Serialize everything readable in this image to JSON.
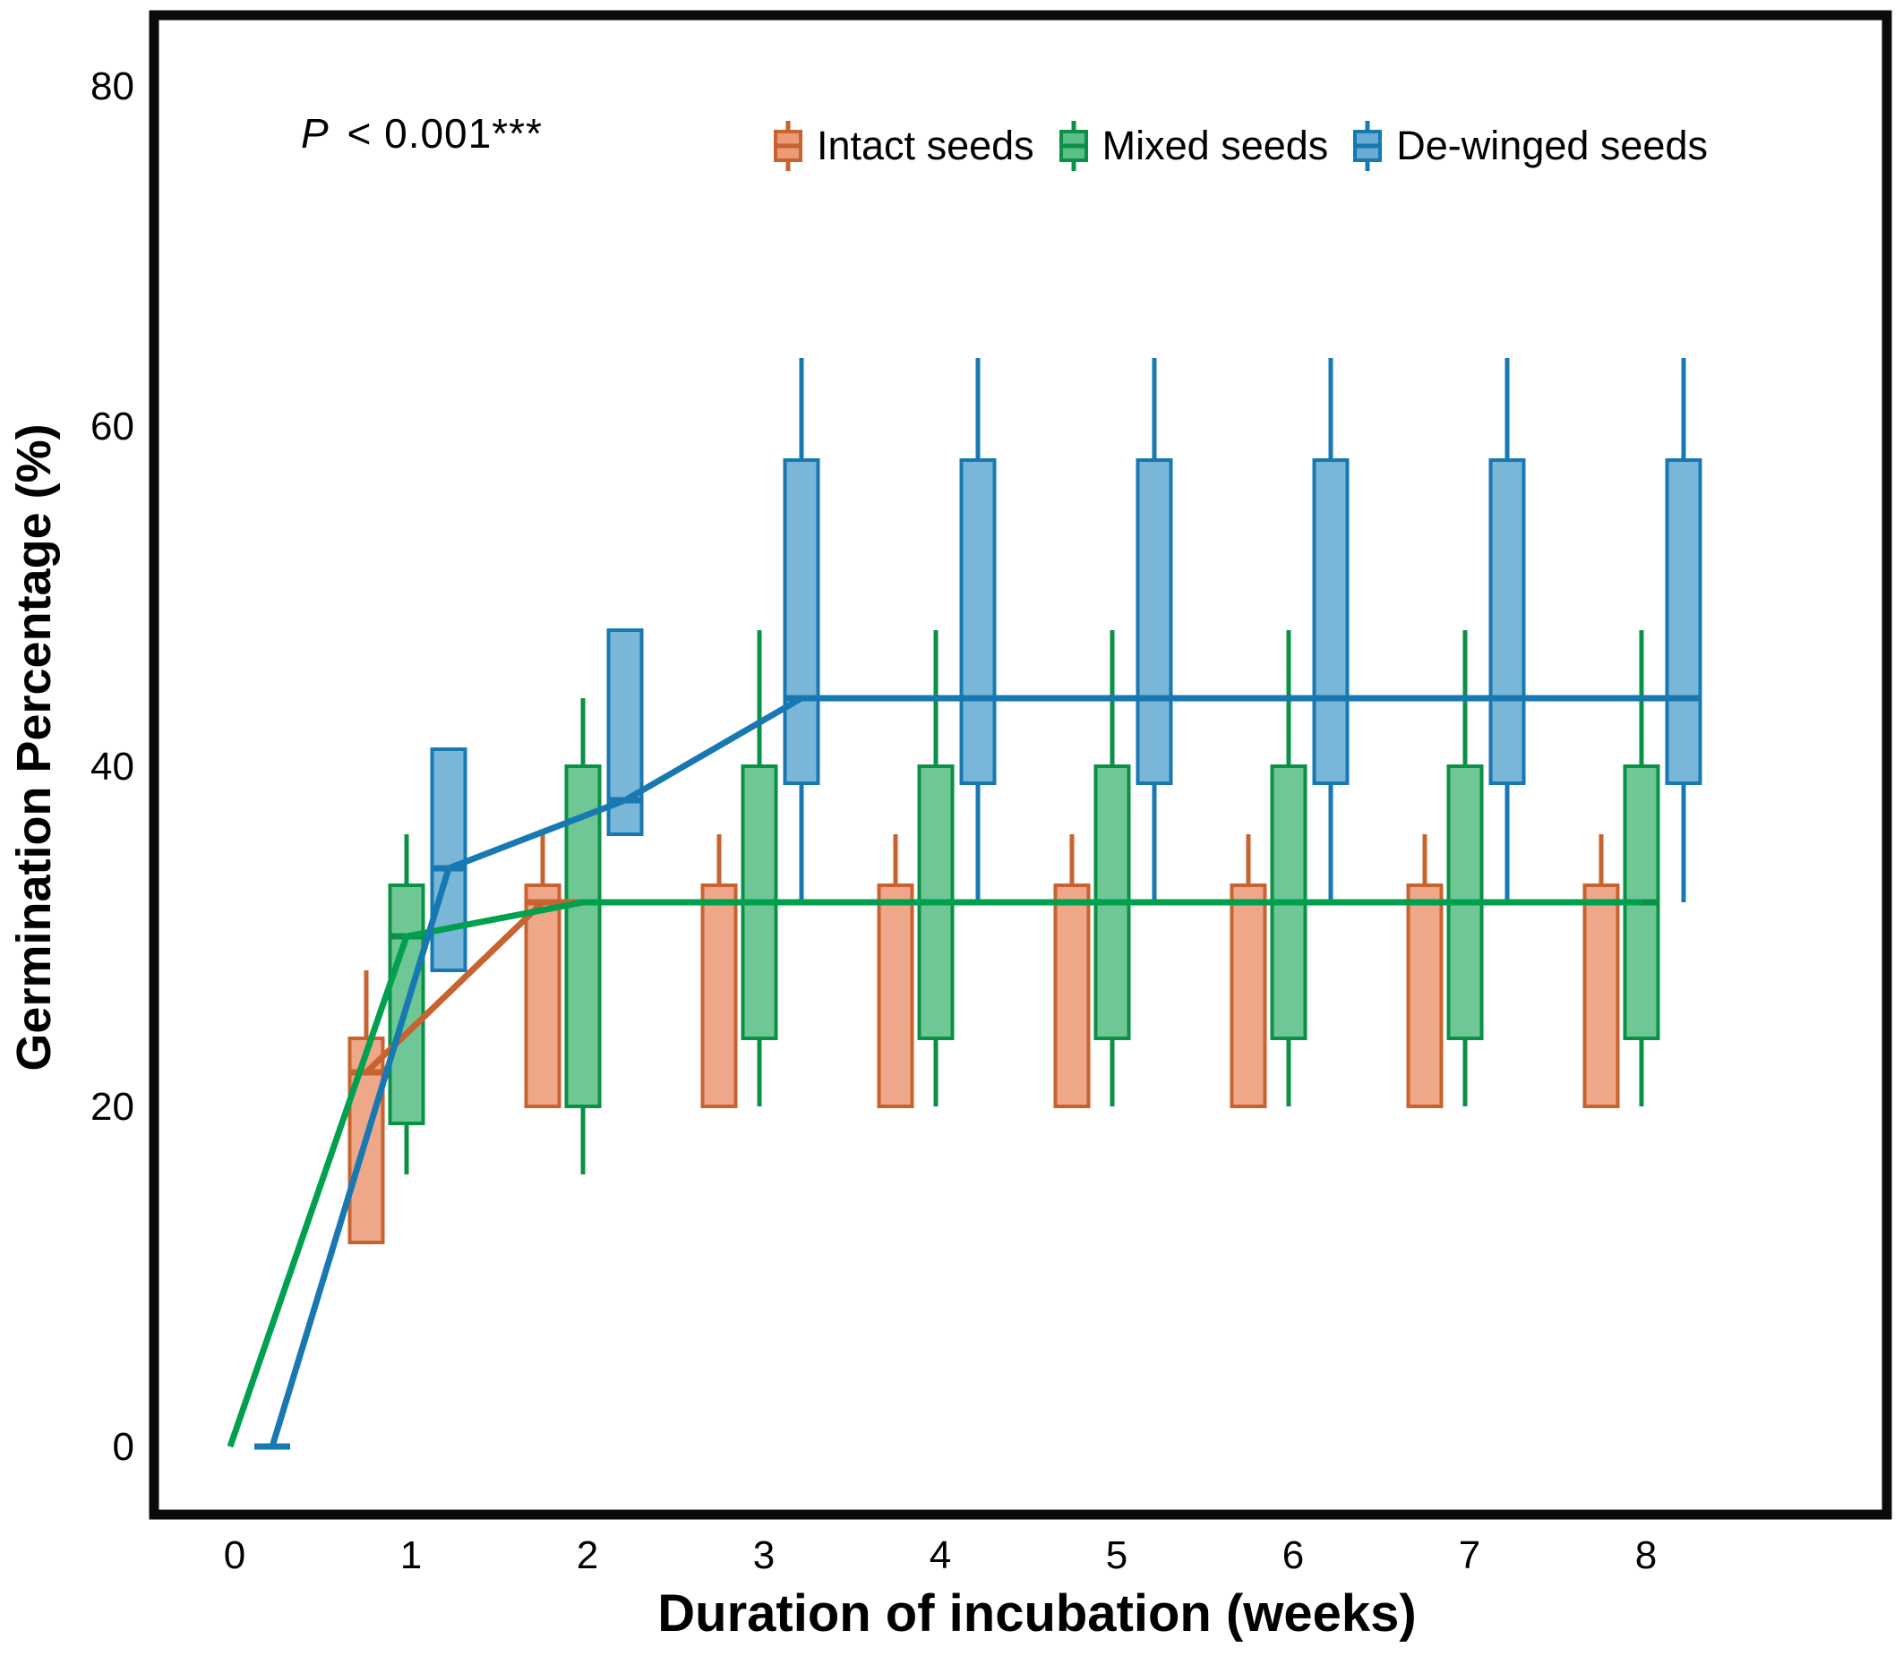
{
  "annotation": {
    "p_label": "P",
    "p_value": " < 0.001***"
  },
  "chart_data": {
    "type": "boxplot",
    "title": "",
    "xlabel": "Duration of incubation (weeks)",
    "ylabel": "Germination Percentage (%)",
    "x_ticks": [
      0,
      1,
      2,
      3,
      4,
      5,
      6,
      7,
      8
    ],
    "y_ticks": [
      0,
      20,
      40,
      60,
      80
    ],
    "xlim": [
      -0.45,
      8.55
    ],
    "ylim": [
      0,
      84
    ],
    "grid": false,
    "legend_position": "top",
    "frame_color": "#0a0a0a",
    "series": [
      {
        "name": "Intact seeds",
        "fill": "#EC9B77",
        "stroke": "#C8622F",
        "line": "#C8622F",
        "boxes": [
          {
            "week": 1,
            "q1": 12,
            "median": 22,
            "q3": 24,
            "whisker_low": null,
            "whisker_high": 28
          },
          {
            "week": 2,
            "q1": 20,
            "median": 32,
            "q3": 33,
            "whisker_low": null,
            "whisker_high": 36
          },
          {
            "week": 3,
            "q1": 20,
            "median": 32,
            "q3": 33,
            "whisker_low": null,
            "whisker_high": 36
          },
          {
            "week": 4,
            "q1": 20,
            "median": 32,
            "q3": 33,
            "whisker_low": null,
            "whisker_high": 36
          },
          {
            "week": 5,
            "q1": 20,
            "median": 32,
            "q3": 33,
            "whisker_low": null,
            "whisker_high": 36
          },
          {
            "week": 6,
            "q1": 20,
            "median": 32,
            "q3": 33,
            "whisker_low": null,
            "whisker_high": 36
          },
          {
            "week": 7,
            "q1": 20,
            "median": 32,
            "q3": 33,
            "whisker_low": null,
            "whisker_high": 36
          },
          {
            "week": 8,
            "q1": 20,
            "median": 32,
            "q3": 33,
            "whisker_low": null,
            "whisker_high": 36
          }
        ],
        "trend": [
          [
            1,
            22
          ],
          [
            2,
            32
          ],
          [
            3,
            32
          ],
          [
            4,
            32
          ],
          [
            5,
            32
          ],
          [
            6,
            32
          ],
          [
            7,
            32
          ],
          [
            8,
            32
          ]
        ]
      },
      {
        "name": "Mixed seeds",
        "fill": "#5CBF88",
        "stroke": "#0B9145",
        "line": "#00A04F",
        "boxes": [
          {
            "week": 1,
            "q1": 19,
            "median": 30,
            "q3": 33,
            "whisker_low": 16,
            "whisker_high": 36
          },
          {
            "week": 2,
            "q1": 20,
            "median": 32,
            "q3": 40,
            "whisker_low": 16,
            "whisker_high": 44
          },
          {
            "week": 3,
            "q1": 24,
            "median": 32,
            "q3": 40,
            "whisker_low": 20,
            "whisker_high": 48
          },
          {
            "week": 4,
            "q1": 24,
            "median": 32,
            "q3": 40,
            "whisker_low": 20,
            "whisker_high": 48
          },
          {
            "week": 5,
            "q1": 24,
            "median": 32,
            "q3": 40,
            "whisker_low": 20,
            "whisker_high": 48
          },
          {
            "week": 6,
            "q1": 24,
            "median": 32,
            "q3": 40,
            "whisker_low": 20,
            "whisker_high": 48
          },
          {
            "week": 7,
            "q1": 24,
            "median": 32,
            "q3": 40,
            "whisker_low": 20,
            "whisker_high": 48
          },
          {
            "week": 8,
            "q1": 24,
            "median": 32,
            "q3": 40,
            "whisker_low": 20,
            "whisker_high": 48
          }
        ],
        "trend": [
          [
            0,
            0
          ],
          [
            1,
            30
          ],
          [
            2,
            32
          ],
          [
            3,
            32
          ],
          [
            4,
            32
          ],
          [
            5,
            32
          ],
          [
            6,
            32
          ],
          [
            7,
            32
          ],
          [
            8,
            32
          ]
        ]
      },
      {
        "name": "De-winged seeds",
        "fill": "#66ACD3",
        "stroke": "#1778B2",
        "line": "#1778B2",
        "boxes": [
          {
            "week": 0,
            "q1": 0,
            "median": 0,
            "q3": 0,
            "whisker_low": null,
            "whisker_high": null
          },
          {
            "week": 1,
            "q1": 28,
            "median": 34,
            "q3": 41,
            "whisker_low": null,
            "whisker_high": null
          },
          {
            "week": 2,
            "q1": 36,
            "median": 38,
            "q3": 48,
            "whisker_low": null,
            "whisker_high": null
          },
          {
            "week": 3,
            "q1": 39,
            "median": 44,
            "q3": 58,
            "whisker_low": 32,
            "whisker_high": 64
          },
          {
            "week": 4,
            "q1": 39,
            "median": 44,
            "q3": 58,
            "whisker_low": 32,
            "whisker_high": 64
          },
          {
            "week": 5,
            "q1": 39,
            "median": 44,
            "q3": 58,
            "whisker_low": 32,
            "whisker_high": 64
          },
          {
            "week": 6,
            "q1": 39,
            "median": 44,
            "q3": 58,
            "whisker_low": 32,
            "whisker_high": 64
          },
          {
            "week": 7,
            "q1": 39,
            "median": 44,
            "q3": 58,
            "whisker_low": 32,
            "whisker_high": 64
          },
          {
            "week": 8,
            "q1": 39,
            "median": 44,
            "q3": 58,
            "whisker_low": 32,
            "whisker_high": 64
          }
        ],
        "trend": [
          [
            0,
            0
          ],
          [
            1,
            34
          ],
          [
            2,
            38
          ],
          [
            3,
            44
          ],
          [
            4,
            44
          ],
          [
            5,
            44
          ],
          [
            6,
            44
          ],
          [
            7,
            44
          ],
          [
            8,
            44
          ]
        ]
      }
    ]
  }
}
